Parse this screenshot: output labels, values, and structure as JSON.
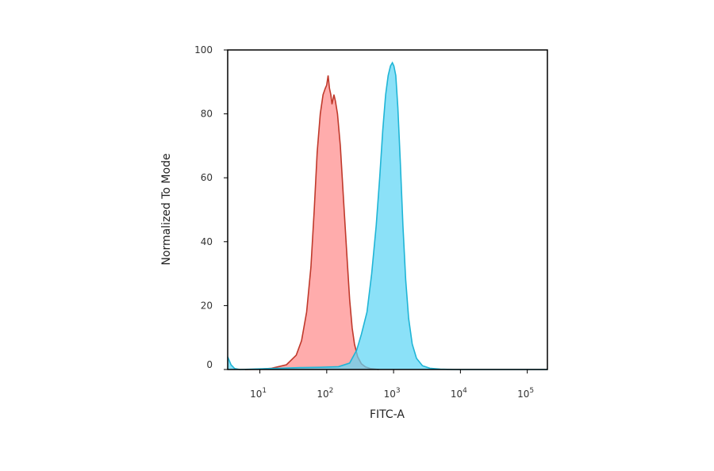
{
  "chart_data": {
    "type": "area",
    "xlabel": "FITC-A",
    "ylabel": "Normalized To Mode",
    "x_scale": "log",
    "xlim": [
      3.3,
      200000
    ],
    "ylim": [
      0,
      100
    ],
    "grid": false,
    "legend": "none",
    "yticks": [
      {
        "value": 0,
        "label": "0"
      },
      {
        "value": 20,
        "label": "20"
      },
      {
        "value": 40,
        "label": "40"
      },
      {
        "value": 60,
        "label": "60"
      },
      {
        "value": 80,
        "label": "80"
      },
      {
        "value": 100,
        "label": "100"
      }
    ],
    "xticks": [
      {
        "value": 10,
        "base": "10",
        "exp": "1"
      },
      {
        "value": 100,
        "base": "10",
        "exp": "2"
      },
      {
        "value": 1000,
        "base": "10",
        "exp": "3"
      },
      {
        "value": 10000,
        "base": "10",
        "exp": "4"
      },
      {
        "value": 100000,
        "base": "10",
        "exp": "5"
      }
    ],
    "series": [
      {
        "fill": "#ff8c8c",
        "stroke": "#c0392b",
        "points": [
          [
            6,
            0
          ],
          [
            10,
            0.1
          ],
          [
            15,
            0.4
          ],
          [
            25,
            1.5
          ],
          [
            35,
            4.5
          ],
          [
            42,
            9
          ],
          [
            50,
            18
          ],
          [
            58,
            32
          ],
          [
            65,
            50
          ],
          [
            72,
            68
          ],
          [
            80,
            80
          ],
          [
            88,
            86
          ],
          [
            95,
            88
          ],
          [
            100,
            89
          ],
          [
            105,
            92
          ],
          [
            110,
            88
          ],
          [
            115,
            86
          ],
          [
            120,
            83
          ],
          [
            128,
            86
          ],
          [
            135,
            84
          ],
          [
            145,
            80
          ],
          [
            160,
            70
          ],
          [
            180,
            52
          ],
          [
            200,
            36
          ],
          [
            220,
            22
          ],
          [
            240,
            13
          ],
          [
            260,
            8
          ],
          [
            290,
            4
          ],
          [
            330,
            1.8
          ],
          [
            380,
            0.8
          ],
          [
            450,
            0.3
          ],
          [
            600,
            0
          ]
        ]
      },
      {
        "fill": "#5ed6f5",
        "stroke": "#1fb5d6",
        "points": [
          [
            3.3,
            4
          ],
          [
            3.7,
            1.5
          ],
          [
            4.2,
            0.3
          ],
          [
            5,
            0
          ],
          [
            10,
            0.2
          ],
          [
            20,
            0.4
          ],
          [
            40,
            0.6
          ],
          [
            80,
            0.7
          ],
          [
            150,
            0.9
          ],
          [
            220,
            2
          ],
          [
            280,
            6
          ],
          [
            330,
            11
          ],
          [
            400,
            18
          ],
          [
            470,
            30
          ],
          [
            550,
            45
          ],
          [
            620,
            60
          ],
          [
            690,
            75
          ],
          [
            760,
            86
          ],
          [
            830,
            92
          ],
          [
            900,
            95
          ],
          [
            960,
            96
          ],
          [
            1010,
            95
          ],
          [
            1080,
            92
          ],
          [
            1160,
            82
          ],
          [
            1260,
            65
          ],
          [
            1380,
            45
          ],
          [
            1520,
            28
          ],
          [
            1680,
            16
          ],
          [
            1900,
            8
          ],
          [
            2200,
            3.5
          ],
          [
            2700,
            1.2
          ],
          [
            3500,
            0.4
          ],
          [
            5000,
            0.1
          ],
          [
            8000,
            0
          ],
          [
            200000,
            0
          ]
        ]
      }
    ]
  }
}
